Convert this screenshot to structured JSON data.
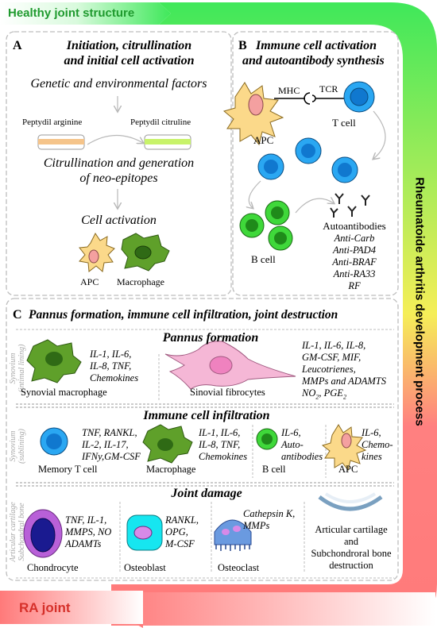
{
  "banners": {
    "top": "Healthy joint structure",
    "bottom": "RA joint",
    "side": "Rheumatoide arthritis development process",
    "colors": {
      "green": "#3fe85a",
      "yellow": "#f5ee58",
      "red": "#ff7f7f",
      "top_text": "#1f9a2e",
      "bottom_text": "#d6302a"
    }
  },
  "panel_a": {
    "letter": "A",
    "title_1": "Initiation, citrullination",
    "title_2": "and initial cell activation",
    "factors": "Genetic and environmental factors",
    "arginine": "Peptydil arginine",
    "citruline": "Peptydil citruline",
    "citr_1": "Citrullination and generation",
    "citr_2": "of neo-epitopes",
    "activation": "Cell activation",
    "apc": "APC",
    "macrophage": "Macrophage"
  },
  "panel_b": {
    "letter": "B",
    "title_1": "Immune cell activation",
    "title_2": "and autoantibody synthesis",
    "mhc": "MHC",
    "tcr": "TCR",
    "apc": "APC",
    "tcell": "T cell",
    "bcell": "B cell",
    "autoantibodies": "Autoantibodies",
    "antibody_list": [
      "Anti-Carb",
      "Anti-PAD4",
      "Anti-BRAF",
      "Anti-RA33",
      "RF"
    ]
  },
  "panel_c": {
    "letter": "C",
    "title": "Pannus formation, immune cell infiltration, joint destruction",
    "pannus": {
      "title": "Pannus formation",
      "side_label_1": "Synovium",
      "side_label_2": "(intimal lining)",
      "mac_cytokines": [
        "IL-1, IL-6,",
        "IL-8, TNF,",
        "Chemokines"
      ],
      "mac_label": "Synovial macrophage",
      "fib_label": "Sinovial fibrocytes",
      "fib_cytokines": [
        "IL-1, IL-6, IL-8,",
        "GM-CSF, MIF,",
        "Leucotrienes,",
        "MMPs and ADAMTS"
      ],
      "fib_last_a": "NO",
      "fib_last_b": "2",
      "fib_last_c": ", PGE",
      "fib_last_d": "2"
    },
    "infiltration": {
      "title": "Immune cell infiltration",
      "side_label_1": "Synovium",
      "side_label_2": "(sublining)",
      "memory_cytokines": [
        "TNF, RANKL,",
        "IL-2, IL-17,",
        "IFNy,GM-CSF"
      ],
      "memory_label": "Memory T cell",
      "mac_cytokines": [
        "IL-1, IL-6,",
        "IL-8, TNF,",
        "Chemokines"
      ],
      "mac_label": "Macrophage",
      "b_cytokines": [
        "IL-6,",
        "Auto-",
        "antibodies"
      ],
      "b_label": "B cell",
      "apc_cytokines": [
        "IL-6,",
        "Chemo-",
        "kines"
      ],
      "apc_label": "APC"
    },
    "damage": {
      "title": "Joint damage",
      "side_label_1": "Articular cartilage",
      "side_label_2": "Subchondral bone",
      "chondro_cytokines": [
        "TNF, IL-1,",
        "MMPS, NO",
        "ADAMTs"
      ],
      "chondro_label": "Chondrocyte",
      "osteob_cytokines": [
        "RANKL,",
        "OPG,",
        "M-CSF"
      ],
      "osteob_label": "Osteoblast",
      "osteoc_cytokines": [
        "Cathepsin K,",
        "MMPs"
      ],
      "osteoc_label": "Osteoclast",
      "destruction": [
        "Articular cartilage",
        "and",
        "Subchondroral bone",
        "destruction"
      ]
    }
  }
}
